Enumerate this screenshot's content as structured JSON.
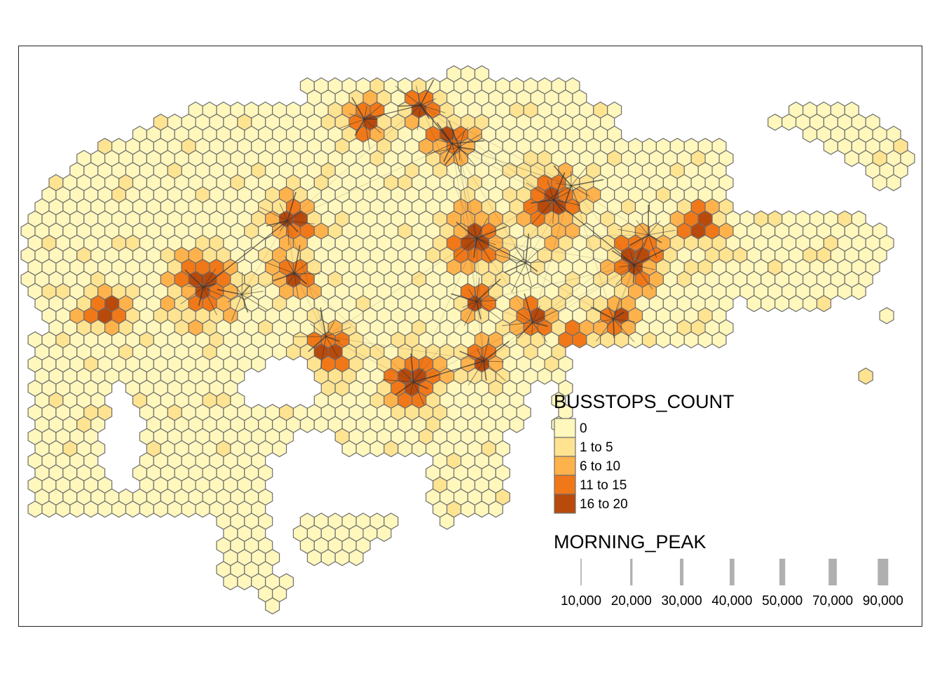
{
  "map": {
    "legend_fill": {
      "title": "BUSSTOPS_COUNT",
      "classes": [
        {
          "label": "0",
          "color": "#FFF7BC"
        },
        {
          "label": "1 to 5",
          "color": "#FEE391"
        },
        {
          "label": "6 to 10",
          "color": "#FEB24C"
        },
        {
          "label": "11 to 15",
          "color": "#F07818"
        },
        {
          "label": "16 to 20",
          "color": "#B84A0C"
        }
      ]
    },
    "legend_lines": {
      "title": "MORNING_PEAK",
      "items": [
        {
          "label": "10,000",
          "value": 10000
        },
        {
          "label": "20,000",
          "value": 20000
        },
        {
          "label": "30,000",
          "value": 30000
        },
        {
          "label": "40,000",
          "value": 40000
        },
        {
          "label": "50,000",
          "value": 50000
        },
        {
          "label": "70,000",
          "value": 70000
        },
        {
          "label": "90,000",
          "value": 90000
        }
      ]
    },
    "colors": {
      "hex_border": "#6E6E6E",
      "flow_line": "#333333",
      "legend_line": "#B0B0B0",
      "frame": "#222222"
    }
  }
}
